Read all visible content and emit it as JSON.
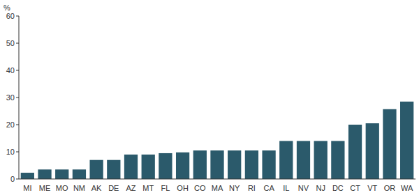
{
  "chart_data": {
    "type": "bar",
    "y_label": "%",
    "categories": [
      "MI",
      "ME",
      "MO",
      "NM",
      "AK",
      "DE",
      "AZ",
      "MT",
      "FL",
      "OH",
      "CO",
      "MA",
      "NY",
      "RI",
      "CA",
      "IL",
      "NV",
      "NJ",
      "DC",
      "CT",
      "VT",
      "OR",
      "WA"
    ],
    "values": [
      2.3,
      3.5,
      3.5,
      3.5,
      7,
      7,
      9,
      9,
      9.5,
      9.8,
      10.5,
      10.5,
      10.5,
      10.5,
      10.5,
      14,
      14,
      14,
      14,
      20,
      20.5,
      25.7,
      28.5
    ],
    "color": "#2b5a6b",
    "ylim": [
      0,
      60
    ],
    "yticks": [
      0,
      10,
      20,
      30,
      40,
      50,
      60
    ],
    "grid": false
  }
}
